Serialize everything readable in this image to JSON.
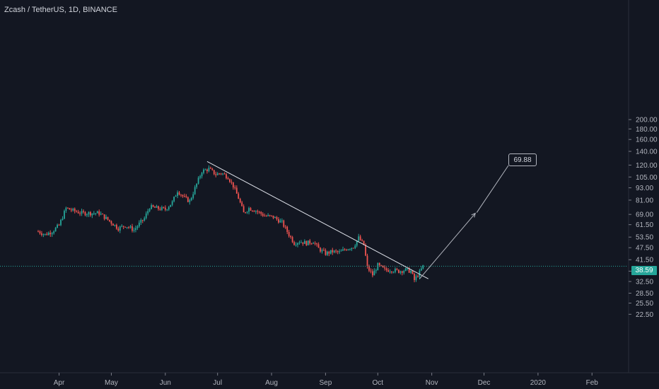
{
  "header": {
    "symbol_title": "Zcash / TetherUS, 1D, BINANCE"
  },
  "chart_data": {
    "type": "candlestick",
    "symbol": "Zcash / TetherUS",
    "interval": "1D",
    "exchange": "BINANCE",
    "scale": "log",
    "ylim": [
      19.5,
      205
    ],
    "y_ticks": [
      "200.00",
      "180.00",
      "160.00",
      "140.00",
      "120.00",
      "105.00",
      "93.00",
      "81.00",
      "69.00",
      "61.50",
      "53.50",
      "47.50",
      "41.50",
      "36.50",
      "32.50",
      "28.50",
      "25.50",
      "22.50"
    ],
    "x_ticks": [
      "Apr",
      "May",
      "Jun",
      "Jul",
      "Aug",
      "Sep",
      "Oct",
      "Nov",
      "Dec",
      "2020",
      "Feb"
    ],
    "last_price": 38.59,
    "last_price_label": "38.59",
    "annotation": {
      "target_label": "69.88",
      "target_value": 69.88
    },
    "colors": {
      "up": "#26a69a",
      "down": "#ef5350",
      "background": "#131722",
      "axis_text": "#b2b5be",
      "price_line": "#26a69a",
      "annotation": "#d1d4dc"
    },
    "trendline": [
      [
        "2019-06-25",
        125.0
      ],
      [
        "2019-10-30",
        33.5
      ]
    ],
    "projection_arrow": [
      [
        "2019-10-25",
        33.5
      ],
      [
        "2019-11-26",
        69.88
      ]
    ],
    "price_path": [
      [
        "2019-03-20",
        57
      ],
      [
        "2019-03-24",
        55
      ],
      [
        "2019-03-28",
        57
      ],
      [
        "2019-04-01",
        61
      ],
      [
        "2019-04-05",
        74
      ],
      [
        "2019-04-09",
        72
      ],
      [
        "2019-04-14",
        70
      ],
      [
        "2019-04-19",
        70
      ],
      [
        "2019-04-24",
        70
      ],
      [
        "2019-04-28",
        66
      ],
      [
        "2019-05-01",
        63
      ],
      [
        "2019-05-05",
        59
      ],
      [
        "2019-05-09",
        61
      ],
      [
        "2019-05-14",
        58
      ],
      [
        "2019-05-17",
        62
      ],
      [
        "2019-05-20",
        66
      ],
      [
        "2019-05-23",
        75
      ],
      [
        "2019-05-27",
        74
      ],
      [
        "2019-06-01",
        73
      ],
      [
        "2019-06-05",
        79
      ],
      [
        "2019-06-08",
        90
      ],
      [
        "2019-06-12",
        83
      ],
      [
        "2019-06-15",
        80
      ],
      [
        "2019-06-19",
        97
      ],
      [
        "2019-06-22",
        112
      ],
      [
        "2019-06-26",
        115
      ],
      [
        "2019-06-30",
        108
      ],
      [
        "2019-07-03",
        110
      ],
      [
        "2019-07-07",
        105
      ],
      [
        "2019-07-10",
        95
      ],
      [
        "2019-07-13",
        83
      ],
      [
        "2019-07-16",
        70
      ],
      [
        "2019-07-19",
        74
      ],
      [
        "2019-07-23",
        72
      ],
      [
        "2019-07-28",
        68
      ],
      [
        "2019-08-02",
        67
      ],
      [
        "2019-08-07",
        63
      ],
      [
        "2019-08-11",
        55
      ],
      [
        "2019-08-14",
        50
      ],
      [
        "2019-08-17",
        51
      ],
      [
        "2019-08-21",
        50
      ],
      [
        "2019-08-25",
        51
      ],
      [
        "2019-08-28",
        47
      ],
      [
        "2019-09-01",
        44.5
      ],
      [
        "2019-09-05",
        45.5
      ],
      [
        "2019-09-09",
        45
      ],
      [
        "2019-09-13",
        47
      ],
      [
        "2019-09-17",
        48
      ],
      [
        "2019-09-20",
        53
      ],
      [
        "2019-09-23",
        49
      ],
      [
        "2019-09-25",
        38
      ],
      [
        "2019-09-28",
        35
      ],
      [
        "2019-10-01",
        39
      ],
      [
        "2019-10-05",
        37
      ],
      [
        "2019-10-09",
        37
      ],
      [
        "2019-10-13",
        36.5
      ],
      [
        "2019-10-17",
        37
      ],
      [
        "2019-10-20",
        36.5
      ],
      [
        "2019-10-22",
        33
      ],
      [
        "2019-10-25",
        36
      ],
      [
        "2019-10-27",
        38.59
      ]
    ]
  }
}
